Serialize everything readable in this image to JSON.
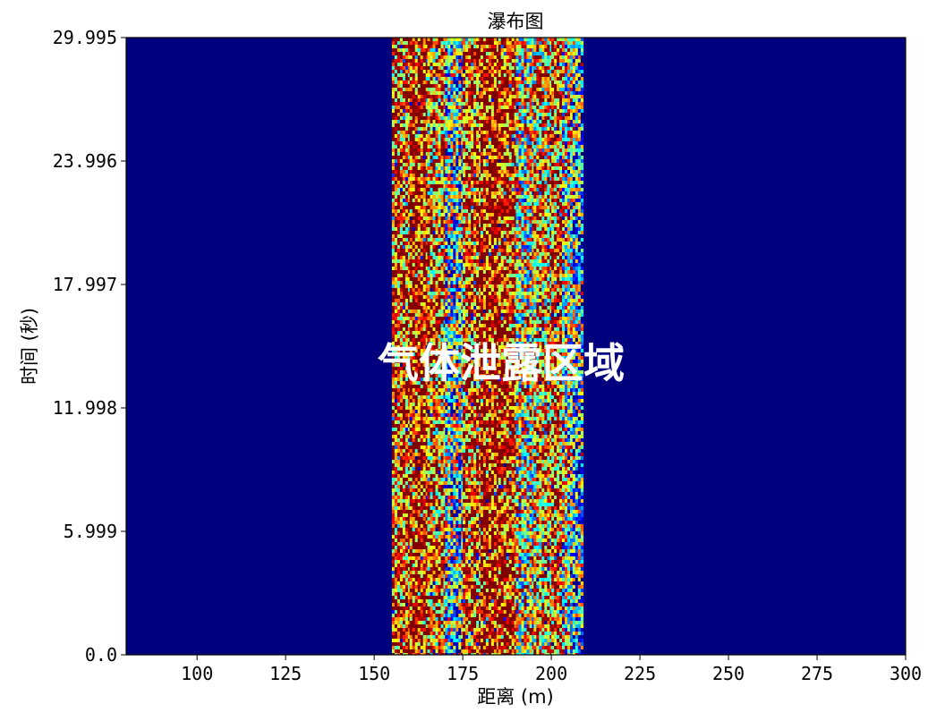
{
  "chart_data": {
    "type": "heatmap",
    "title": "瀑布图",
    "xlabel": "距离 (m)",
    "ylabel": "时间 (秒)",
    "xlim": [
      80,
      300
    ],
    "ylim": [
      0,
      29.995
    ],
    "x_ticks": [
      100,
      125,
      150,
      175,
      200,
      225,
      250,
      275,
      300
    ],
    "x_tick_labels": [
      "100",
      "125",
      "150",
      "175",
      "200",
      "225",
      "250",
      "275",
      "300"
    ],
    "y_ticks": [
      0,
      5.999,
      11.998,
      17.997,
      23.996,
      29.995
    ],
    "y_tick_labels": [
      "0.0",
      "5.999",
      "11.998",
      "17.997",
      "23.996",
      "29.995"
    ],
    "colormap": "jet",
    "background_color": "#00007f",
    "active_region_x": [
      155,
      210
    ],
    "annotation": "气体泄露区域",
    "grid": false
  }
}
